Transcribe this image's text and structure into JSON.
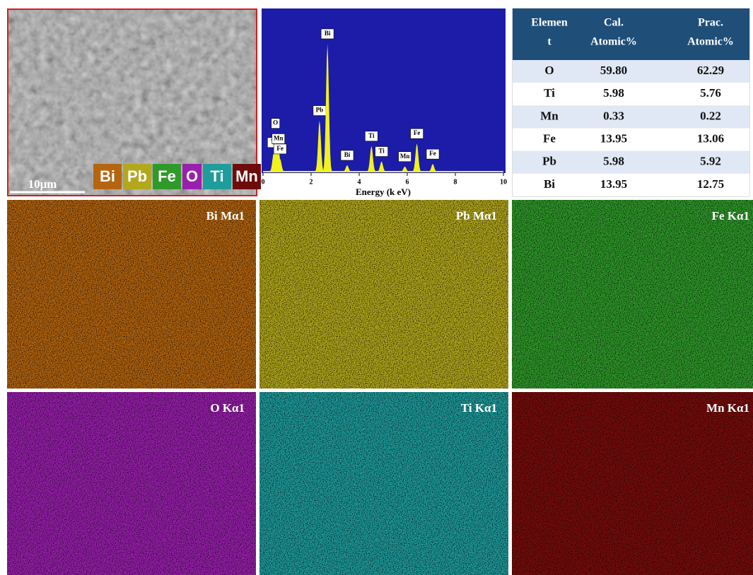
{
  "sem": {
    "scale_bar": "10μm",
    "legend": [
      {
        "label": "Bi",
        "color": "#b5650f"
      },
      {
        "label": "Pb",
        "color": "#b3a81c"
      },
      {
        "label": "Fe",
        "color": "#2f9a2a"
      },
      {
        "label": "O",
        "color": "#9a1fae"
      },
      {
        "label": "Ti",
        "color": "#1f9c9c"
      },
      {
        "label": "Mn",
        "color": "#6e0c0c"
      }
    ]
  },
  "spectrum": {
    "x_label": "Energy (k eV)",
    "xlim": [
      0,
      10
    ],
    "xticks": [
      0,
      2,
      4,
      6,
      8,
      10
    ],
    "peaks": [
      {
        "label": "Ti",
        "energy": 0.45,
        "height": 15
      },
      {
        "label": "O",
        "energy": 0.52,
        "height": 30
      },
      {
        "label": "Mn",
        "energy": 0.64,
        "height": 18
      },
      {
        "label": "Fe",
        "energy": 0.71,
        "height": 10
      },
      {
        "label": "Pb",
        "energy": 2.35,
        "height": 40
      },
      {
        "label": "Bi",
        "energy": 2.68,
        "height": 100
      },
      {
        "label": "Bi",
        "energy": 3.5,
        "height": 5
      },
      {
        "label": "Ti",
        "energy": 4.51,
        "height": 20
      },
      {
        "label": "Ti",
        "energy": 4.93,
        "height": 8
      },
      {
        "label": "Mn",
        "energy": 5.9,
        "height": 4
      },
      {
        "label": "Fe",
        "energy": 6.4,
        "height": 22
      },
      {
        "label": "Fe",
        "energy": 7.06,
        "height": 6
      }
    ]
  },
  "table": {
    "header": [
      [
        "Elemen",
        "t"
      ],
      [
        "Cal.",
        "Atomic%"
      ],
      [
        "Prac.",
        "Atomic%"
      ]
    ],
    "rows": [
      [
        "O",
        "59.80",
        "62.29"
      ],
      [
        "Ti",
        "5.98",
        "5.76"
      ],
      [
        "Mn",
        "0.33",
        "0.22"
      ],
      [
        "Fe",
        "13.95",
        "13.06"
      ],
      [
        "Pb",
        "5.98",
        "5.92"
      ],
      [
        "Bi",
        "13.95",
        "12.75"
      ]
    ]
  },
  "maps": [
    {
      "label": "Bi Mα1",
      "color": "#b5650f"
    },
    {
      "label": "Pb Mα1",
      "color": "#b3a81c"
    },
    {
      "label": "Fe Kα1",
      "color": "#2f9a2a"
    },
    {
      "label": "O Kα1",
      "color": "#9a1fae"
    },
    {
      "label": "Ti Kα1",
      "color": "#1f9c9c"
    },
    {
      "label": "Mn Kα1",
      "color": "#7a0c0c"
    }
  ]
}
